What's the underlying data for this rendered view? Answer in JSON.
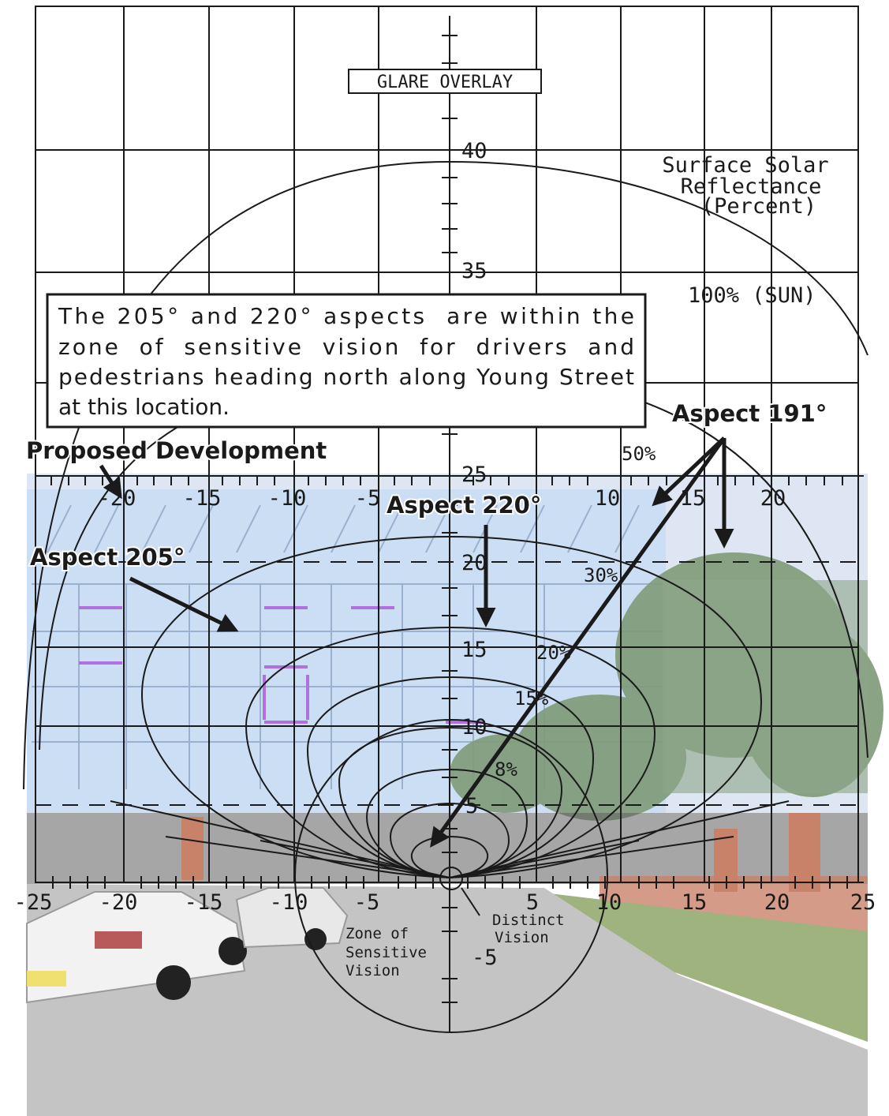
{
  "overlay": {
    "title": "GLARE OVERLAY",
    "legend_title_lines": [
      "Surface Solar",
      "Reflectance",
      "(Percent)"
    ],
    "sun_label": "100% (SUN)",
    "reflectance_labels": [
      "50%",
      "30%",
      "20%",
      "15%",
      "8%"
    ],
    "x_top_ticks": [
      "-20",
      "-15",
      "-10",
      "-5",
      "10",
      "15",
      "20"
    ],
    "x_bottom_ticks": [
      "-25",
      "-20",
      "-15",
      "-10",
      "-5",
      "5",
      "10",
      "15",
      "20",
      "25"
    ],
    "y_ticks": [
      "40",
      "35",
      "25",
      "20",
      "15",
      "10",
      "5",
      "-5"
    ],
    "zone_label_lines": [
      "Zone of",
      "Sensitive",
      "Vision"
    ],
    "distinct_label_lines": [
      "Distinct",
      "Vision"
    ]
  },
  "annotations": {
    "note_lines": [
      "The 205° and 220° aspects  are within the",
      "zone  of  sensitive  vision  for  drivers  and",
      "pedestrians heading north along Young Street",
      "at this location."
    ],
    "proposed_development": "Proposed Development",
    "aspect_191": "Aspect 191°",
    "aspect_205": "Aspect 205°",
    "aspect_220": "Aspect 220°"
  },
  "colors": {
    "building": "#c9dcf4",
    "building_line": "#8fa6c8",
    "accent_purple": "#b070e0",
    "trees": "#7f9a78",
    "road": "#c4c4c4",
    "grass": "#9fb37e",
    "brick": "#c8826a",
    "ink": "#1a1a1a"
  }
}
